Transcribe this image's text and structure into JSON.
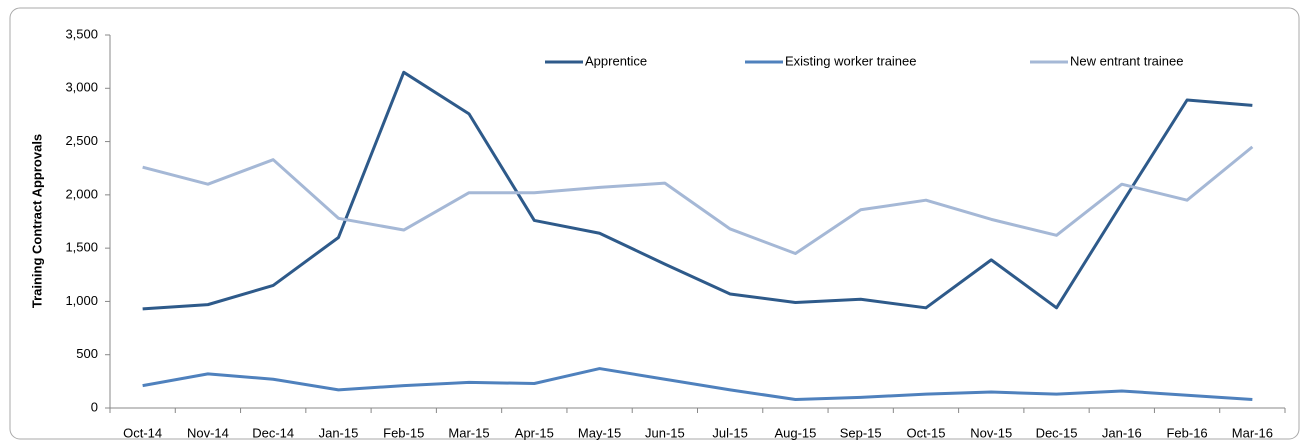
{
  "chart_data": {
    "type": "line",
    "y_label": "Training Contract Approvals",
    "categories": [
      "Oct-14",
      "Nov-14",
      "Dec-14",
      "Jan-15",
      "Feb-15",
      "Mar-15",
      "Apr-15",
      "May-15",
      "Jun-15",
      "Jul-15",
      "Aug-15",
      "Sep-15",
      "Oct-15",
      "Nov-15",
      "Dec-15",
      "Jan-16",
      "Feb-16",
      "Mar-16"
    ],
    "series": [
      {
        "name": "Apprentice",
        "color": "#2e5a8a",
        "values": [
          930,
          970,
          1150,
          1600,
          3150,
          2760,
          1760,
          1640,
          1350,
          1070,
          990,
          1020,
          940,
          1390,
          940,
          1920,
          2890,
          2840
        ]
      },
      {
        "name": "Existing worker trainee",
        "color": "#4f81bd",
        "values": [
          210,
          320,
          270,
          170,
          210,
          240,
          230,
          370,
          270,
          170,
          80,
          100,
          130,
          150,
          130,
          160,
          120,
          80
        ]
      },
      {
        "name": "New entrant trainee",
        "color": "#a5b8d6",
        "values": [
          2260,
          2100,
          2330,
          1780,
          1670,
          2020,
          2020,
          2070,
          2110,
          1680,
          1450,
          1860,
          1950,
          1770,
          1620,
          2100,
          1950,
          2450
        ]
      }
    ],
    "ylim": [
      0,
      3500
    ],
    "yticks": [
      0,
      500,
      {
        "value": 1000,
        "label": "1,000"
      },
      {
        "value": 1500,
        "label": "1,500"
      },
      {
        "value": 2000,
        "label": "2,000"
      },
      {
        "value": 2500,
        "label": "2,500"
      },
      {
        "value": 3000,
        "label": "3,000"
      },
      {
        "value": 3500,
        "label": "3,500"
      }
    ],
    "legend": "top",
    "grid": false
  }
}
